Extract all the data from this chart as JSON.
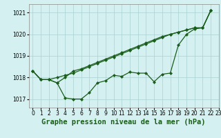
{
  "title": "Graphe pression niveau de la mer (hPa)",
  "bg_color": "#d4f0f0",
  "line_color": "#1a5c1a",
  "grid_color_major": "#aacfcf",
  "xlim": [
    -0.5,
    23
  ],
  "ylim": [
    1016.6,
    1021.4
  ],
  "yticks": [
    1017,
    1018,
    1019,
    1020,
    1021
  ],
  "xtick_labels": [
    "0",
    "1",
    "2",
    "3",
    "4",
    "5",
    "6",
    "7",
    "8",
    "9",
    "10",
    "11",
    "12",
    "13",
    "14",
    "15",
    "16",
    "17",
    "18",
    "19",
    "20",
    "21",
    "22",
    "23"
  ],
  "series": [
    [
      1018.3,
      1017.9,
      1017.9,
      1017.75,
      1017.05,
      1017.0,
      1017.0,
      1017.3,
      1017.75,
      1017.85,
      1018.1,
      1018.05,
      1018.25,
      1018.2,
      1018.2,
      1017.8,
      1018.15,
      1018.2,
      1019.5,
      1020.0,
      1020.25,
      1020.3,
      1021.1
    ],
    [
      1018.3,
      1017.9,
      1017.9,
      1018.0,
      1018.1,
      1018.2,
      1018.35,
      1018.5,
      1018.65,
      1018.8,
      1018.95,
      1019.1,
      1019.25,
      1019.4,
      1019.55,
      1019.7,
      1019.85,
      1020.0,
      1020.1,
      1020.2,
      1020.3,
      1020.3,
      1021.1
    ],
    [
      1018.3,
      1017.9,
      1017.9,
      1017.75,
      1018.0,
      1018.3,
      1018.4,
      1018.55,
      1018.7,
      1018.85,
      1019.0,
      1019.15,
      1019.3,
      1019.45,
      1019.6,
      1019.75,
      1019.9,
      1020.0,
      1020.1,
      1020.2,
      1020.3,
      1020.3,
      1021.1
    ]
  ],
  "marker": "D",
  "markersize": 2.2,
  "linewidth": 0.9,
  "title_fontsize": 7.5,
  "tick_fontsize": 5.5
}
